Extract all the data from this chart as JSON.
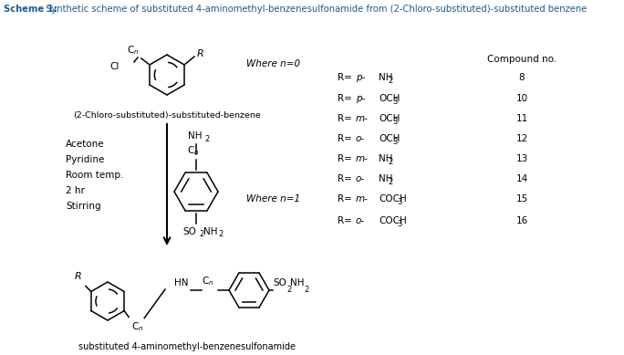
{
  "title_bold": "Scheme 1:",
  "title_rest": " Synthetic scheme of substituted 4-aminomethyl-benzenesulfonamide from (2-Chloro-substituted)-substituted benzene",
  "title_color": "#1f5c8b",
  "title_fontsize": 7.2,
  "bg_color": "#ffffff",
  "r_entries": [
    {
      "position": "p",
      "group": "NH",
      "sub": "2",
      "num": "8"
    },
    {
      "position": "p",
      "group": "OCH",
      "sub": "3",
      "num": "10"
    },
    {
      "position": "m",
      "group": "OCH",
      "sub": "3",
      "num": "11"
    },
    {
      "position": "o",
      "group": "OCH",
      "sub": "3",
      "num": "12"
    },
    {
      "position": "m",
      "group": "NH",
      "sub": "2",
      "num": "13"
    },
    {
      "position": "o",
      "group": "NH",
      "sub": "2",
      "num": "14"
    },
    {
      "position": "m",
      "group": "COCH",
      "sub": "3",
      "num": "15"
    },
    {
      "position": "o",
      "group": "COCH",
      "sub": "3",
      "num": "16"
    }
  ],
  "conditions": [
    "Acetone",
    "Pyridine",
    "Room temp.",
    "2 hr",
    "Stirring"
  ],
  "where_n0": "Where n=0",
  "where_n1": "Where n=1",
  "label_top": "(2-Chloro-substituted)-substituted-benzene",
  "label_bottom": "substituted 4-aminomethyl-benzenesulfonamide",
  "compound_no_header": "Compound no.",
  "lc": "#1f5c8b"
}
